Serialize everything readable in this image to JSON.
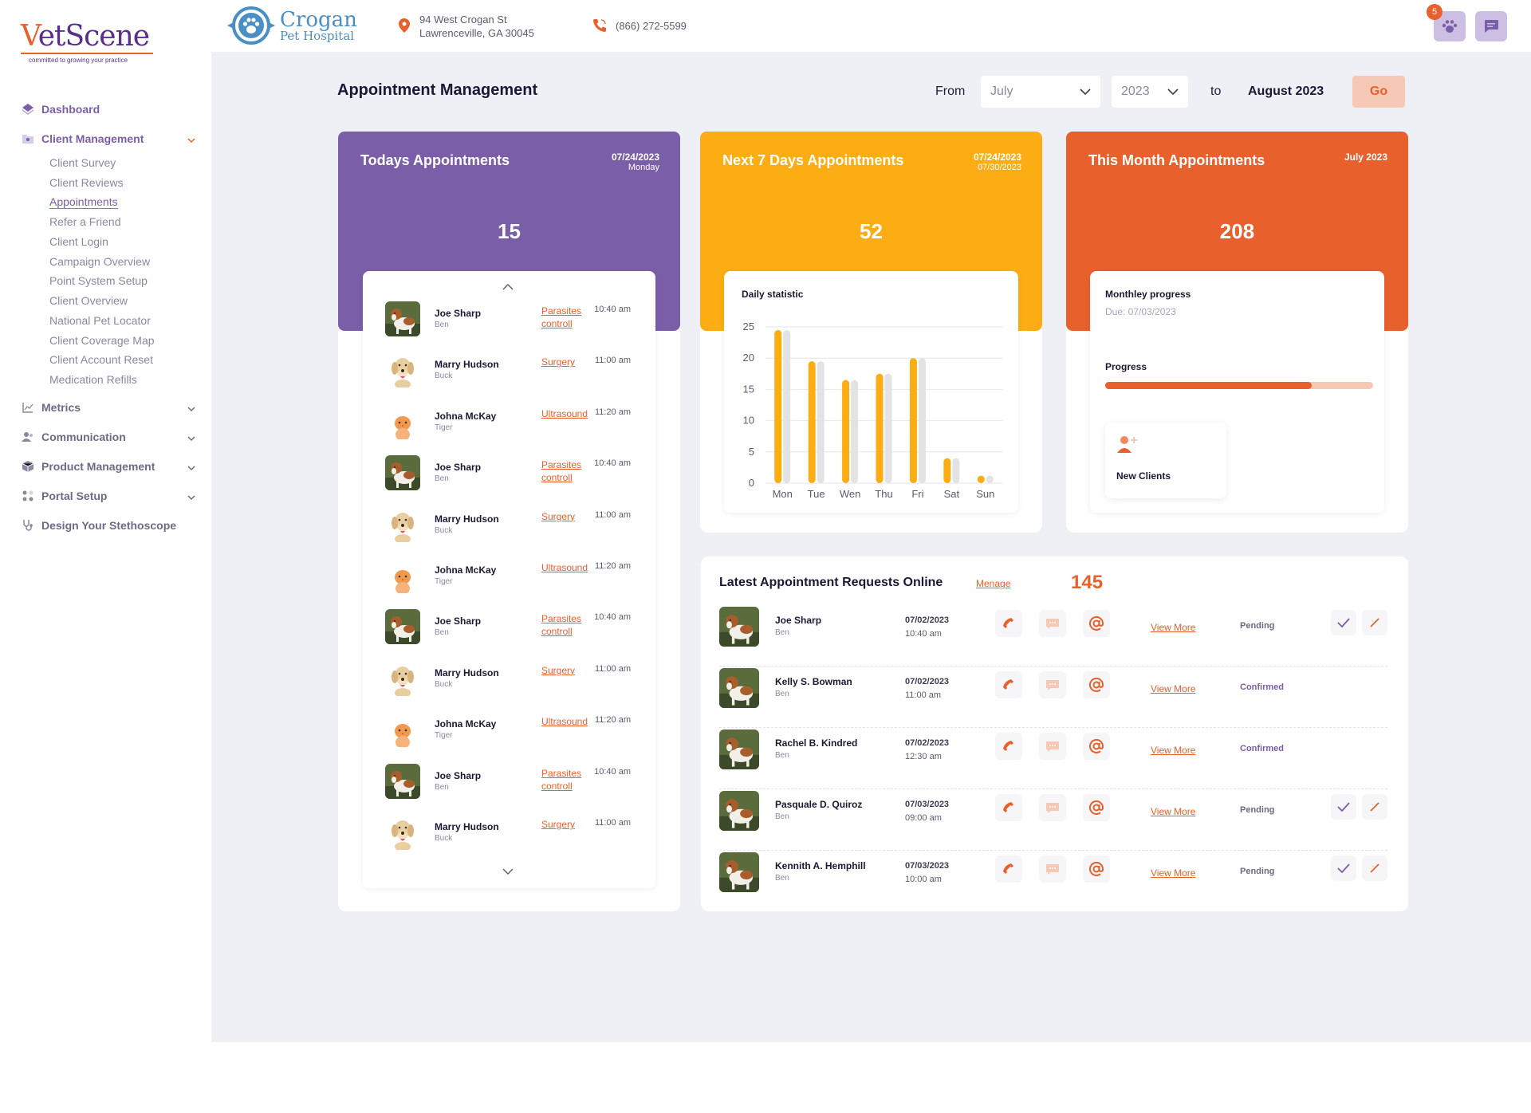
{
  "brand": {
    "logo_v": "V",
    "logo_rest": "etScene",
    "tagline": "committed to growing your practice"
  },
  "sidebar": {
    "dashboard": "Dashboard",
    "client_management": "Client Management",
    "sub_items": [
      "Client Survey",
      "Client Reviews",
      "Appointments",
      "Refer a Friend",
      "Client Login",
      "Campaign Overview",
      "Point System Setup",
      "Client Overview",
      "National Pet Locator",
      "Client Coverage Map",
      "Client Account Reset",
      "Medication Refills"
    ],
    "current_sub": "Appointments",
    "metrics": "Metrics",
    "communication": "Communication",
    "product_management": "Product Management",
    "portal_setup": "Portal Setup",
    "design_stethoscope": "Design Your Stethoscope"
  },
  "header": {
    "hospital_line1": "Crogan",
    "hospital_line2": "Pet Hospital",
    "address_line1": "94 West Crogan St",
    "address_line2": "Lawrenceville, GA 30045",
    "phone": "(866) 272-5599",
    "notification_count": "5"
  },
  "filters": {
    "title": "Appointment Management",
    "from_label": "From",
    "month": "July",
    "year": "2023",
    "to_label": "to",
    "end": "August 2023",
    "go": "Go"
  },
  "today": {
    "title": "Todays Appointments",
    "date": "07/24/2023",
    "day": "Monday",
    "count": "15",
    "appointments": [
      {
        "name": "Joe Sharp",
        "pet": "Ben",
        "type": "Parasites controll",
        "time": "10:40 am",
        "kind": "dog-brown"
      },
      {
        "name": "Marry Hudson",
        "pet": "Buck",
        "type": "Surgery",
        "time": "11:00 am",
        "kind": "dog-lab"
      },
      {
        "name": "Johna McKay",
        "pet": "Tiger",
        "type": "Ultrasound",
        "time": "11:20 am",
        "kind": "cat"
      },
      {
        "name": "Joe Sharp",
        "pet": "Ben",
        "type": "Parasites controll",
        "time": "10:40 am",
        "kind": "dog-brown"
      },
      {
        "name": "Marry Hudson",
        "pet": "Buck",
        "type": "Surgery",
        "time": "11:00 am",
        "kind": "dog-lab"
      },
      {
        "name": "Johna McKay",
        "pet": "Tiger",
        "type": "Ultrasound",
        "time": "11:20 am",
        "kind": "cat"
      },
      {
        "name": "Joe Sharp",
        "pet": "Ben",
        "type": "Parasites controll",
        "time": "10:40 am",
        "kind": "dog-brown"
      },
      {
        "name": "Marry Hudson",
        "pet": "Buck",
        "type": "Surgery",
        "time": "11:00 am",
        "kind": "dog-lab"
      },
      {
        "name": "Johna McKay",
        "pet": "Tiger",
        "type": "Ultrasound",
        "time": "11:20 am",
        "kind": "cat"
      },
      {
        "name": "Joe Sharp",
        "pet": "Ben",
        "type": "Parasites controll",
        "time": "10:40 am",
        "kind": "dog-brown"
      },
      {
        "name": "Marry Hudson",
        "pet": "Buck",
        "type": "Surgery",
        "time": "11:00 am",
        "kind": "dog-lab"
      }
    ]
  },
  "week": {
    "title": "Next 7 Days Appointments",
    "date_from": "07/24/2023",
    "date_to": "07/30/2023",
    "count": "52"
  },
  "month": {
    "title": "This Month Appointments",
    "date": "July 2023",
    "count": "208",
    "progress_title": "Monthley progress",
    "due": "Due: 07/03/2023",
    "progress_label": "Progress",
    "progress_fraction": 0.77,
    "new_clients": "New Clients"
  },
  "chart_data": {
    "type": "bar",
    "title": "Daily statistic",
    "categories": [
      "Mon",
      "Tue",
      "Wen",
      "Thu",
      "Fri",
      "Sat",
      "Sun"
    ],
    "series": [
      {
        "values": [
          24.5,
          19.5,
          16.5,
          17.5,
          20,
          4,
          1.2
        ]
      },
      {
        "values": [
          24.5,
          19.5,
          16.5,
          17.5,
          20,
          4,
          1.2
        ]
      }
    ],
    "ylim": [
      0,
      25
    ],
    "yticks": [
      0,
      5,
      10,
      15,
      20,
      25
    ],
    "grid": true,
    "colors": [
      "#fcad13",
      "#e3e3e6"
    ]
  },
  "requests": {
    "title": "Latest Appointment Requests Online",
    "manage": "Menage",
    "count": "145",
    "view_more": "View More",
    "rows": [
      {
        "name": "Joe Sharp",
        "pet": "Ben",
        "date": "07/02/2023",
        "time": "10:40 am",
        "status": "Pending"
      },
      {
        "name": "Kelly S. Bowman",
        "pet": "Ben",
        "date": "07/02/2023",
        "time": "11:00 am",
        "status": "Confirmed"
      },
      {
        "name": "Rachel B. Kindred",
        "pet": "Ben",
        "date": "07/02/2023",
        "time": "12:30 am",
        "status": "Confirmed"
      },
      {
        "name": "Pasquale D. Quiroz",
        "pet": "Ben",
        "date": "07/03/2023",
        "time": "09:00 am",
        "status": "Pending"
      },
      {
        "name": "Kennith A. Hemphill",
        "pet": "Ben",
        "date": "07/03/2023",
        "time": "10:00 am",
        "status": "Pending"
      }
    ]
  },
  "colors": {
    "purple": "#7b5ea8",
    "yellow": "#fcad13",
    "orange": "#e8602c"
  }
}
